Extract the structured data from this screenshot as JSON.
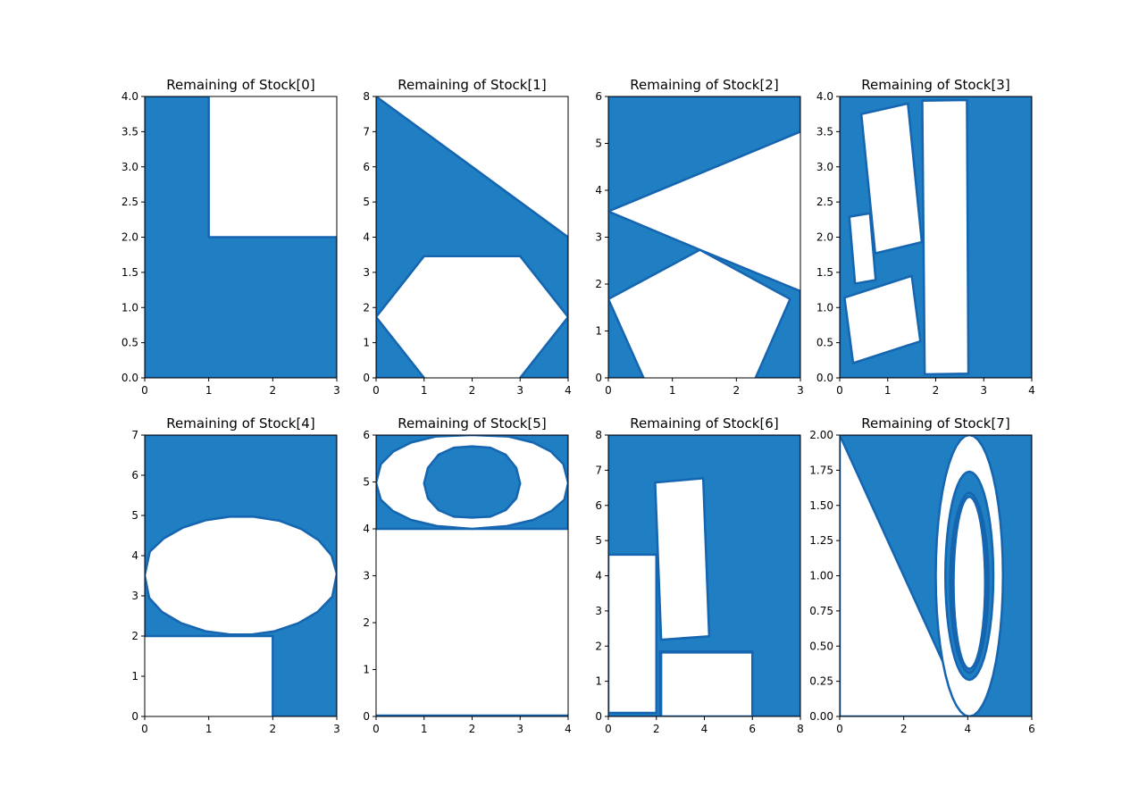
{
  "colors": {
    "fill": "#1f7fc2",
    "edge": "#1565b0",
    "hole": "#ffffff",
    "axis": "#000000"
  },
  "chart_data": [
    {
      "type": "area",
      "title": "Remaining of Stock[0]",
      "xlim": [
        0,
        3
      ],
      "ylim": [
        0,
        4
      ],
      "xticks": [
        "0",
        "1",
        "2",
        "3"
      ],
      "yticks": [
        "0.0",
        "0.5",
        "1.0",
        "1.5",
        "2.0",
        "2.5",
        "3.0",
        "3.5",
        "4.0"
      ],
      "grid": false,
      "remaining": [
        [
          [
            0,
            0
          ],
          [
            3,
            0
          ],
          [
            3,
            2
          ],
          [
            1,
            2
          ],
          [
            1,
            4
          ],
          [
            0,
            4
          ]
        ]
      ],
      "holes": []
    },
    {
      "type": "area",
      "title": "Remaining of Stock[1]",
      "xlim": [
        0,
        4
      ],
      "ylim": [
        0,
        8
      ],
      "xticks": [
        "0",
        "1",
        "2",
        "3",
        "4"
      ],
      "yticks": [
        "0",
        "1",
        "2",
        "3",
        "4",
        "5",
        "6",
        "7",
        "8"
      ],
      "grid": false,
      "remaining": [
        [
          [
            0,
            8
          ],
          [
            4,
            4
          ],
          [
            4,
            1.73
          ],
          [
            3,
            3.46
          ],
          [
            1,
            3.46
          ],
          [
            0,
            1.73
          ]
        ],
        [
          [
            0,
            1.73
          ],
          [
            1,
            0
          ],
          [
            0,
            0
          ]
        ],
        [
          [
            4,
            1.73
          ],
          [
            4,
            0
          ],
          [
            3,
            0
          ]
        ]
      ],
      "holes": []
    },
    {
      "type": "area",
      "title": "Remaining of Stock[2]",
      "xlim": [
        0,
        3
      ],
      "ylim": [
        0,
        6
      ],
      "xticks": [
        "0",
        "1",
        "2",
        "3"
      ],
      "yticks": [
        "0",
        "1",
        "2",
        "3",
        "4",
        "5",
        "6"
      ],
      "grid": false,
      "remaining": [
        [
          [
            0,
            6
          ],
          [
            3,
            6
          ],
          [
            3,
            5.25
          ],
          [
            0,
            3.55
          ]
        ],
        [
          [
            0,
            3.55
          ],
          [
            1.43,
            2.73
          ],
          [
            0,
            1.68
          ]
        ],
        [
          [
            1.43,
            2.73
          ],
          [
            3,
            1.85
          ],
          [
            3,
            0
          ],
          [
            2.3,
            0
          ],
          [
            2.84,
            1.68
          ]
        ],
        [
          [
            0,
            1.68
          ],
          [
            0.55,
            0
          ],
          [
            0,
            0
          ]
        ]
      ],
      "holes": []
    },
    {
      "type": "area",
      "title": "Remaining of Stock[3]",
      "xlim": [
        0,
        4
      ],
      "ylim": [
        0,
        4
      ],
      "xticks": [
        "0",
        "1",
        "2",
        "3",
        "4"
      ],
      "yticks": [
        "0.0",
        "0.5",
        "1.0",
        "1.5",
        "2.0",
        "2.5",
        "3.0",
        "3.5",
        "4.0"
      ],
      "grid": false,
      "remaining": [
        [
          [
            0,
            0
          ],
          [
            4,
            0
          ],
          [
            4,
            4
          ],
          [
            0,
            4
          ]
        ]
      ],
      "holes": [
        [
          [
            0.45,
            3.75
          ],
          [
            1.42,
            3.9
          ],
          [
            1.71,
            1.93
          ],
          [
            0.74,
            1.77
          ]
        ],
        [
          [
            1.72,
            3.94
          ],
          [
            2.65,
            3.95
          ],
          [
            2.68,
            0.06
          ],
          [
            1.77,
            0.05
          ]
        ],
        [
          [
            0.2,
            2.29
          ],
          [
            0.63,
            2.34
          ],
          [
            0.75,
            1.39
          ],
          [
            0.32,
            1.34
          ]
        ],
        [
          [
            0.1,
            1.14
          ],
          [
            1.5,
            1.45
          ],
          [
            1.68,
            0.52
          ],
          [
            0.28,
            0.21
          ]
        ]
      ]
    },
    {
      "type": "area",
      "title": "Remaining of Stock[4]",
      "xlim": [
        0,
        3
      ],
      "ylim": [
        0,
        7
      ],
      "xticks": [
        "0",
        "1",
        "2",
        "3"
      ],
      "yticks": [
        "0",
        "1",
        "2",
        "3",
        "4",
        "5",
        "6",
        "7"
      ],
      "grid": false,
      "remaining": [
        [
          [
            0,
            7
          ],
          [
            3,
            7
          ],
          [
            3,
            0
          ],
          [
            2,
            0
          ],
          [
            2,
            2
          ],
          [
            0,
            2
          ]
        ]
      ],
      "holes": [
        [
          [
            0,
            3.51
          ],
          [
            0.08,
            4.1
          ],
          [
            0.3,
            4.43
          ],
          [
            0.6,
            4.7
          ],
          [
            0.95,
            4.88
          ],
          [
            1.33,
            4.97
          ],
          [
            1.7,
            4.97
          ],
          [
            2.1,
            4.87
          ],
          [
            2.45,
            4.66
          ],
          [
            2.72,
            4.38
          ],
          [
            2.92,
            4.0
          ],
          [
            3,
            3.55
          ],
          [
            2.93,
            2.98
          ],
          [
            2.7,
            2.6
          ],
          [
            2.4,
            2.32
          ],
          [
            2.03,
            2.12
          ],
          [
            1.67,
            2.04
          ],
          [
            1.33,
            2.04
          ],
          [
            0.95,
            2.12
          ],
          [
            0.57,
            2.32
          ],
          [
            0.27,
            2.6
          ],
          [
            0.07,
            2.95
          ]
        ]
      ]
    },
    {
      "type": "area",
      "title": "Remaining of Stock[5]",
      "xlim": [
        0,
        4
      ],
      "ylim": [
        0,
        6
      ],
      "xticks": [
        "0",
        "1",
        "2",
        "3",
        "4"
      ],
      "yticks": [
        "0",
        "1",
        "2",
        "3",
        "4",
        "5",
        "6"
      ],
      "grid": false,
      "remaining": [
        [
          [
            0,
            4
          ],
          [
            4,
            4
          ],
          [
            4,
            6
          ],
          [
            0,
            6
          ]
        ],
        [
          [
            0,
            0
          ],
          [
            4,
            0
          ],
          [
            4,
            0.02
          ],
          [
            0,
            0.02
          ]
        ]
      ],
      "holes": [
        [
          [
            0,
            4.98
          ],
          [
            0.1,
            5.38
          ],
          [
            0.36,
            5.65
          ],
          [
            0.73,
            5.84
          ],
          [
            1.25,
            5.97
          ],
          [
            2,
            6.0
          ],
          [
            2.75,
            5.97
          ],
          [
            3.27,
            5.84
          ],
          [
            3.64,
            5.65
          ],
          [
            3.9,
            5.38
          ],
          [
            4,
            4.98
          ],
          [
            3.92,
            4.62
          ],
          [
            3.65,
            4.38
          ],
          [
            3.27,
            4.19
          ],
          [
            2.73,
            4.06
          ],
          [
            2,
            4.0
          ],
          [
            1.27,
            4.06
          ],
          [
            0.73,
            4.19
          ],
          [
            0.35,
            4.38
          ],
          [
            0.1,
            4.62
          ]
        ]
      ],
      "islands": [
        [
          [
            1,
            4.97
          ],
          [
            1.08,
            5.3
          ],
          [
            1.3,
            5.58
          ],
          [
            1.62,
            5.73
          ],
          [
            2,
            5.76
          ],
          [
            2.38,
            5.73
          ],
          [
            2.7,
            5.58
          ],
          [
            2.92,
            5.3
          ],
          [
            3,
            4.97
          ],
          [
            2.92,
            4.65
          ],
          [
            2.7,
            4.4
          ],
          [
            2.38,
            4.26
          ],
          [
            2,
            4.24
          ],
          [
            1.62,
            4.26
          ],
          [
            1.3,
            4.4
          ],
          [
            1.08,
            4.65
          ]
        ]
      ]
    },
    {
      "type": "area",
      "title": "Remaining of Stock[6]",
      "xlim": [
        0,
        8
      ],
      "ylim": [
        0,
        8
      ],
      "xticks": [
        "0",
        "2",
        "4",
        "6",
        "8"
      ],
      "yticks": [
        "0",
        "1",
        "2",
        "3",
        "4",
        "5",
        "6",
        "7",
        "8"
      ],
      "grid": false,
      "remaining": [
        [
          [
            0,
            0
          ],
          [
            8,
            0
          ],
          [
            8,
            8
          ],
          [
            0,
            8
          ]
        ]
      ],
      "holes": [
        [
          [
            0,
            0.1
          ],
          [
            2,
            0.1
          ],
          [
            2,
            4.6
          ],
          [
            0,
            4.6
          ]
        ],
        [
          [
            1.95,
            0
          ],
          [
            2.15,
            0
          ],
          [
            2.15,
            1.85
          ],
          [
            6,
            1.85
          ],
          [
            6,
            0
          ],
          [
            8,
            0
          ],
          [
            8,
            0.0
          ],
          [
            1.95,
            0.0
          ]
        ],
        [
          [
            2.2,
            0
          ],
          [
            6,
            0
          ],
          [
            6,
            1.82
          ],
          [
            2.2,
            1.82
          ]
        ],
        [
          [
            1.95,
            6.65
          ],
          [
            3.95,
            6.77
          ],
          [
            4.2,
            2.28
          ],
          [
            2.2,
            2.18
          ]
        ]
      ]
    },
    {
      "type": "area",
      "title": "Remaining of Stock[7]",
      "xlim": [
        0,
        6
      ],
      "ylim": [
        0,
        2
      ],
      "xticks": [
        "0",
        "2",
        "4",
        "6"
      ],
      "yticks": [
        "0.00",
        "0.25",
        "0.50",
        "0.75",
        "1.00",
        "1.25",
        "1.50",
        "1.75",
        "2.00"
      ],
      "grid": false,
      "remaining": [
        [
          [
            0,
            2
          ],
          [
            6,
            2
          ],
          [
            6,
            0
          ],
          [
            0,
            0
          ]
        ]
      ],
      "holes": [
        [
          [
            0,
            2
          ],
          [
            0,
            0
          ],
          [
            4,
            0
          ],
          [
            3.6,
            0.2
          ]
        ]
      ],
      "rings": [
        {
          "outer": {
            "cx": 4.05,
            "cy": 1.0,
            "rx": 1.05,
            "ry": 1.0
          },
          "inner": {
            "cx": 4.05,
            "cy": 1.0,
            "rx": 0.75,
            "ry": 0.74
          }
        },
        {
          "outer": {
            "cx": 4.05,
            "cy": 0.95,
            "rx": 0.6,
            "ry": 0.63
          },
          "inner": {
            "cx": 4.05,
            "cy": 0.95,
            "rx": 0.55,
            "ry": 0.64
          }
        }
      ]
    }
  ]
}
